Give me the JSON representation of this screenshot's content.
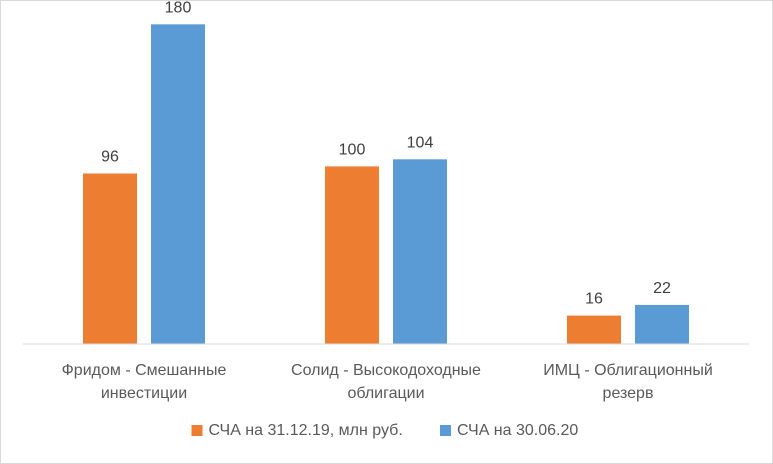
{
  "chart_data": {
    "type": "bar",
    "categories": [
      [
        "Фридом - Смешанные",
        "инвестиции"
      ],
      [
        "Солид - Высокодоходные",
        "облигации"
      ],
      [
        "ИМЦ - Облигационный",
        "резерв"
      ]
    ],
    "series": [
      {
        "name": "СЧА на 31.12.19, млн руб.",
        "color": "#ED7D31",
        "values": [
          96,
          100,
          16
        ]
      },
      {
        "name": "СЧА на 30.06.20",
        "color": "#5B9BD5",
        "values": [
          180,
          104,
          22
        ]
      }
    ],
    "ylim": [
      0,
      200
    ],
    "grid": false,
    "legend": "bottom",
    "data_labels": true
  }
}
